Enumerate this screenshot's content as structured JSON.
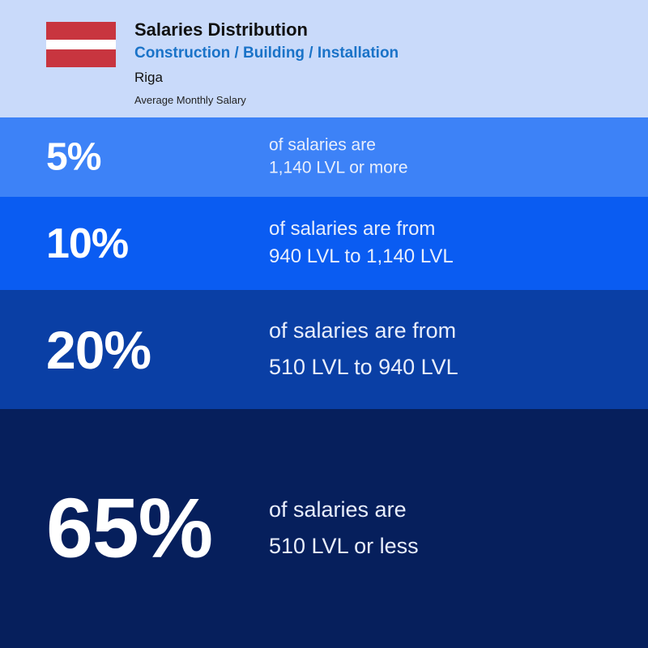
{
  "header": {
    "title": "Salaries Distribution",
    "subtitle": "Construction / Building / Installation",
    "city": "Riga",
    "caption": "Average Monthly Salary"
  },
  "flag": {
    "top_color": "#c8353f",
    "middle_color": "#ffffff",
    "bottom_color": "#c8353f"
  },
  "colors": {
    "header_bg": "#c9dafa",
    "subtitle": "#1a73c8",
    "row_bgs": [
      "#3d82f7",
      "#0a5cf2",
      "#0a3fa5",
      "#061f5c"
    ]
  },
  "chart_data": {
    "type": "table",
    "rows": [
      {
        "percent": 5,
        "percent_label": "5%",
        "line1": "of salaries are",
        "line2": "1,140 LVL or more"
      },
      {
        "percent": 10,
        "percent_label": "10%",
        "line1": "of salaries are from",
        "line2": "940 LVL to 1,140 LVL"
      },
      {
        "percent": 20,
        "percent_label": "20%",
        "line1": "of salaries are from",
        "line2": "510 LVL to 940 LVL"
      },
      {
        "percent": 65,
        "percent_label": "65%",
        "line1": "of salaries are",
        "line2": "510 LVL or less"
      }
    ]
  }
}
